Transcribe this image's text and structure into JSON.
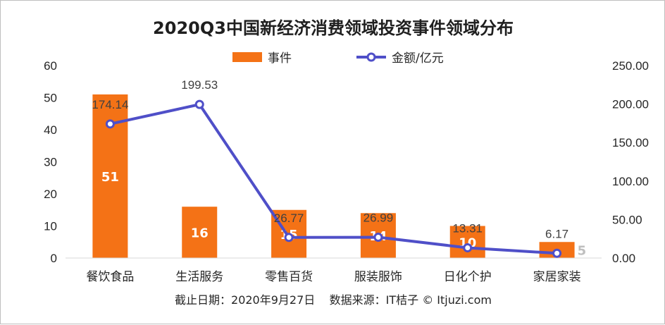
{
  "chart_data": {
    "type": "bar",
    "title": "2020Q3中国新经济消费领域投资事件领域分布",
    "categories": [
      "餐饮食品",
      "生活服务",
      "零售百货",
      "服装服饰",
      "日化个护",
      "家居家装"
    ],
    "series": [
      {
        "name": "事件",
        "type": "bar",
        "axis": "left",
        "color": "#f47216",
        "values": [
          51,
          16,
          15,
          14,
          10,
          5
        ],
        "labels": [
          "51",
          "16",
          "15",
          "14",
          "10",
          "5"
        ]
      },
      {
        "name": "金额/亿元",
        "type": "line",
        "axis": "right",
        "color": "#4f4fc8",
        "values": [
          174.14,
          199.53,
          26.77,
          26.99,
          13.31,
          6.17
        ],
        "labels": [
          "174.14",
          "199.53",
          "26.77",
          "26.99",
          "13.31",
          "6.17"
        ]
      }
    ],
    "y_left": {
      "min": 0,
      "max": 60,
      "ticks": [
        "0",
        "10",
        "20",
        "30",
        "40",
        "50",
        "60"
      ]
    },
    "y_right": {
      "min": 0,
      "max": 250,
      "ticks": [
        "0.00",
        "50.00",
        "100.00",
        "150.00",
        "200.00",
        "250.00"
      ]
    },
    "legend": {
      "placement": "top",
      "items": [
        "事件",
        "金额/亿元"
      ]
    },
    "grid": false,
    "footer": "截止日期：2020年9月27日    数据来源：IT桔子 © Itjuzi.com"
  }
}
